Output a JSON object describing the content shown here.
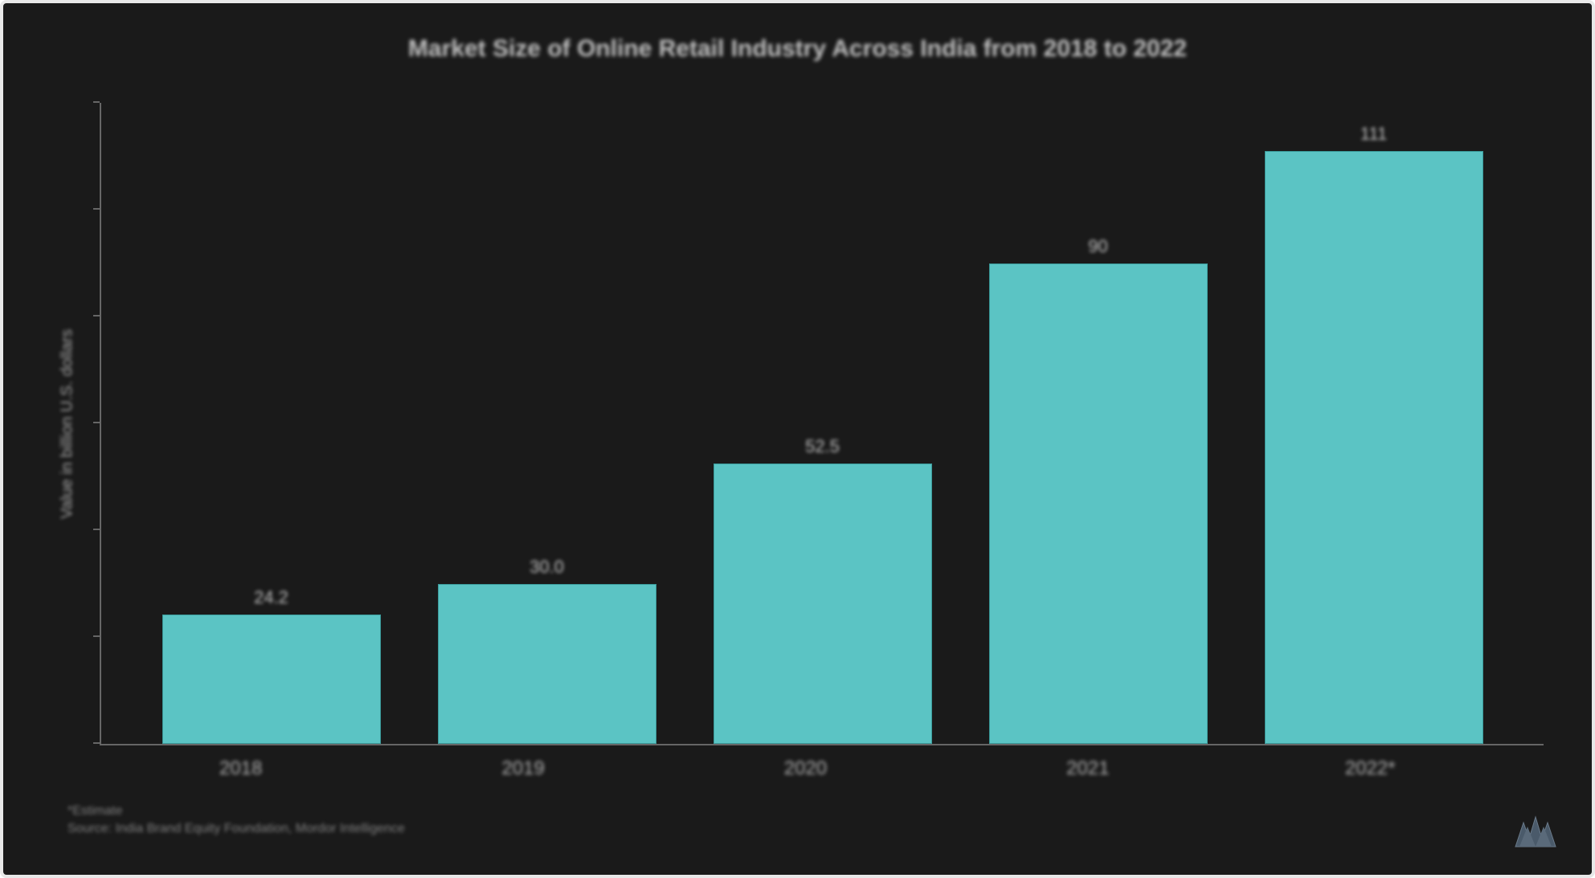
{
  "chart": {
    "type": "bar",
    "title": "Market Size of Online Retail Industry Across India from 2018 to 2022",
    "ylabel": "Value in billion U.S. dollars",
    "categories": [
      "2018",
      "2019",
      "2020",
      "2021",
      "2022*"
    ],
    "values": [
      24.2,
      30.0,
      52.5,
      90,
      111
    ],
    "value_labels": [
      "24.2",
      "30.0",
      "52.5",
      "90",
      "111"
    ],
    "ylim_max": 120,
    "bar_color": "#5bc4c4",
    "bar_border_color": "#3a9a9a",
    "background_color": "#1a1a1a",
    "border_color": "#e8e8e8",
    "text_color": "#c0c0c0",
    "axis_color": "#666666",
    "bar_width_pct": 80,
    "title_fontsize": 30,
    "label_fontsize": 20,
    "tick_fontsize": 24,
    "value_fontsize": 22
  },
  "footnotes": {
    "line1": "*Estimate",
    "line2": "Source: India Brand Equity Foundation, Mordor Intelligence"
  },
  "logo": {
    "name": "mordor-intelligence-logo"
  }
}
